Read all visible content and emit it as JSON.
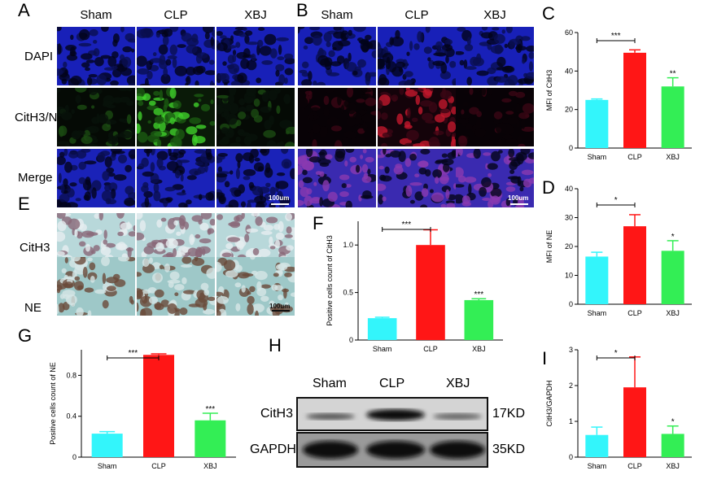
{
  "panels": {
    "A": "A",
    "B": "B",
    "C": "C",
    "D": "D",
    "E": "E",
    "F": "F",
    "G": "G",
    "H": "H",
    "I": "I"
  },
  "groups": [
    "Sham",
    "CLP",
    "XBJ"
  ],
  "rows_if": [
    "DAPI",
    "CitH3/NE",
    "Merge"
  ],
  "rows_ihc": [
    "CitH3",
    "NE"
  ],
  "scale_label": "100um",
  "blot": {
    "lanes": [
      "Sham",
      "CLP",
      "XBJ"
    ],
    "rows": [
      {
        "name": "CitH3",
        "size": "17KD"
      },
      {
        "name": "GAPDH",
        "size": "35KD"
      }
    ]
  },
  "colors": {
    "Sham": "#33f5fb",
    "CLP": "#ff1616",
    "XBJ": "#33ee55",
    "dapi": "#1a22c8",
    "green": "#3fcf2a",
    "red": "#e0203c"
  },
  "chart_data": [
    {
      "id": "C",
      "type": "bar",
      "categories": [
        "Sham",
        "CLP",
        "XBJ"
      ],
      "values": [
        25,
        49.5,
        32
      ],
      "errors": [
        0.5,
        1.5,
        4.5
      ],
      "ylabel": "MFI of CitH3",
      "ylim": [
        0,
        60
      ],
      "yticks": [
        0,
        20,
        40,
        60
      ],
      "sig": [
        "",
        "",
        "**"
      ],
      "bracket": {
        "from": 0,
        "to": 1,
        "label": "***"
      }
    },
    {
      "id": "D",
      "type": "bar",
      "categories": [
        "Sham",
        "CLP",
        "XBJ"
      ],
      "values": [
        16.5,
        27,
        18.5
      ],
      "errors": [
        1.5,
        4,
        3.5
      ],
      "ylabel": "MFI of NE",
      "ylim": [
        0,
        40
      ],
      "yticks": [
        0,
        10,
        20,
        30,
        40
      ],
      "sig": [
        "",
        "",
        "*"
      ],
      "bracket": {
        "from": 0,
        "to": 1,
        "label": "*"
      }
    },
    {
      "id": "F",
      "type": "bar",
      "categories": [
        "Sham",
        "CLP",
        "XBJ"
      ],
      "values": [
        0.23,
        1.0,
        0.42
      ],
      "errors": [
        0.01,
        0.16,
        0.015
      ],
      "ylabel": "Positive cells count of CitH3",
      "ylim": [
        0,
        1.25
      ],
      "yticks": [
        0,
        0.5,
        1.0
      ],
      "yticklabels": [
        "0",
        "0.5",
        "1.0"
      ],
      "sig": [
        "",
        "",
        "***"
      ],
      "bracket": {
        "from": 0,
        "to": 1,
        "label": "***"
      }
    },
    {
      "id": "G",
      "type": "bar",
      "categories": [
        "Sham",
        "CLP",
        "XBJ"
      ],
      "values": [
        0.23,
        1.0,
        0.36
      ],
      "errors": [
        0.02,
        0.01,
        0.07
      ],
      "ylabel": "Positive cells count of NE",
      "ylim": [
        0,
        1.05
      ],
      "yticks": [
        0,
        0.4,
        0.8
      ],
      "yticklabels": [
        "0",
        "0.4",
        "0.8"
      ],
      "sig": [
        "",
        "",
        "***"
      ],
      "bracket": {
        "from": 0,
        "to": 1,
        "label": "***"
      }
    },
    {
      "id": "I",
      "type": "bar",
      "categories": [
        "Sham",
        "CLP",
        "XBJ"
      ],
      "values": [
        0.62,
        1.95,
        0.65
      ],
      "errors": [
        0.22,
        0.85,
        0.22
      ],
      "ylabel": "CitH3/GAPDH",
      "ylim": [
        0,
        3
      ],
      "yticks": [
        0,
        1,
        2,
        3
      ],
      "sig": [
        "",
        "",
        "*"
      ],
      "bracket": {
        "from": 0,
        "to": 1,
        "label": "*"
      }
    }
  ]
}
